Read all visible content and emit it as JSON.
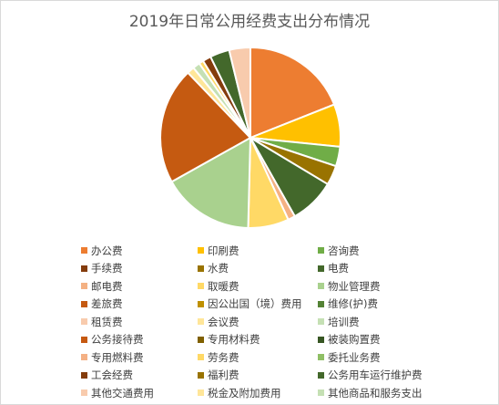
{
  "chart_data": {
    "type": "pie",
    "title": "2019年日常公用经费支出分布情况",
    "legend_position": "bottom",
    "series": [
      {
        "label": "办公费",
        "value": 19.0,
        "color": "#ED7D31"
      },
      {
        "label": "印刷费",
        "value": 7.6,
        "color": "#FFC000"
      },
      {
        "label": "咨询费",
        "value": 3.5,
        "color": "#70AD47"
      },
      {
        "label": "手续费",
        "value": 0.0,
        "color": "#843C0C"
      },
      {
        "label": "水费",
        "value": 3.5,
        "color": "#997300"
      },
      {
        "label": "电费",
        "value": 8.2,
        "color": "#43682B"
      },
      {
        "label": "邮电费",
        "value": 1.3,
        "color": "#F4B183"
      },
      {
        "label": "取暖费",
        "value": 7.3,
        "color": "#FFD966"
      },
      {
        "label": "物业管理费",
        "value": 16.5,
        "color": "#A9D18E"
      },
      {
        "label": "差旅费",
        "value": 20.9,
        "color": "#C55A11"
      },
      {
        "label": "因公出国（境）费用",
        "value": 0.0,
        "color": "#BF9000"
      },
      {
        "label": "维修(护)费",
        "value": 0.0,
        "color": "#548235"
      },
      {
        "label": "租赁费",
        "value": 0.0,
        "color": "#F8CBAD"
      },
      {
        "label": "会议费",
        "value": 1.3,
        "color": "#FFE699"
      },
      {
        "label": "培训费",
        "value": 1.3,
        "color": "#C5E0B4"
      },
      {
        "label": "公务接待费",
        "value": 0.0,
        "color": "#C65911"
      },
      {
        "label": "专用材料费",
        "value": 0.0,
        "color": "#806000"
      },
      {
        "label": "被装购置费",
        "value": 0.0,
        "color": "#375623"
      },
      {
        "label": "专用燃料费",
        "value": 0.0,
        "color": "#F4B084"
      },
      {
        "label": "劳务费",
        "value": 0.8,
        "color": "#FFD966"
      },
      {
        "label": "委托业务费",
        "value": 0.0,
        "color": "#8FBF65"
      },
      {
        "label": "工会经费",
        "value": 1.5,
        "color": "#843C0C"
      },
      {
        "label": "福利费",
        "value": 0.0,
        "color": "#997300"
      },
      {
        "label": "公务用车运行维护费",
        "value": 3.5,
        "color": "#43682B"
      },
      {
        "label": "其他交通费用",
        "value": 3.8,
        "color": "#F8CBAD"
      },
      {
        "label": "税金及附加费用",
        "value": 0.0,
        "color": "#FFE699"
      },
      {
        "label": "其他商品和服务支出",
        "value": 0.0,
        "color": "#C5E0B4"
      }
    ]
  }
}
